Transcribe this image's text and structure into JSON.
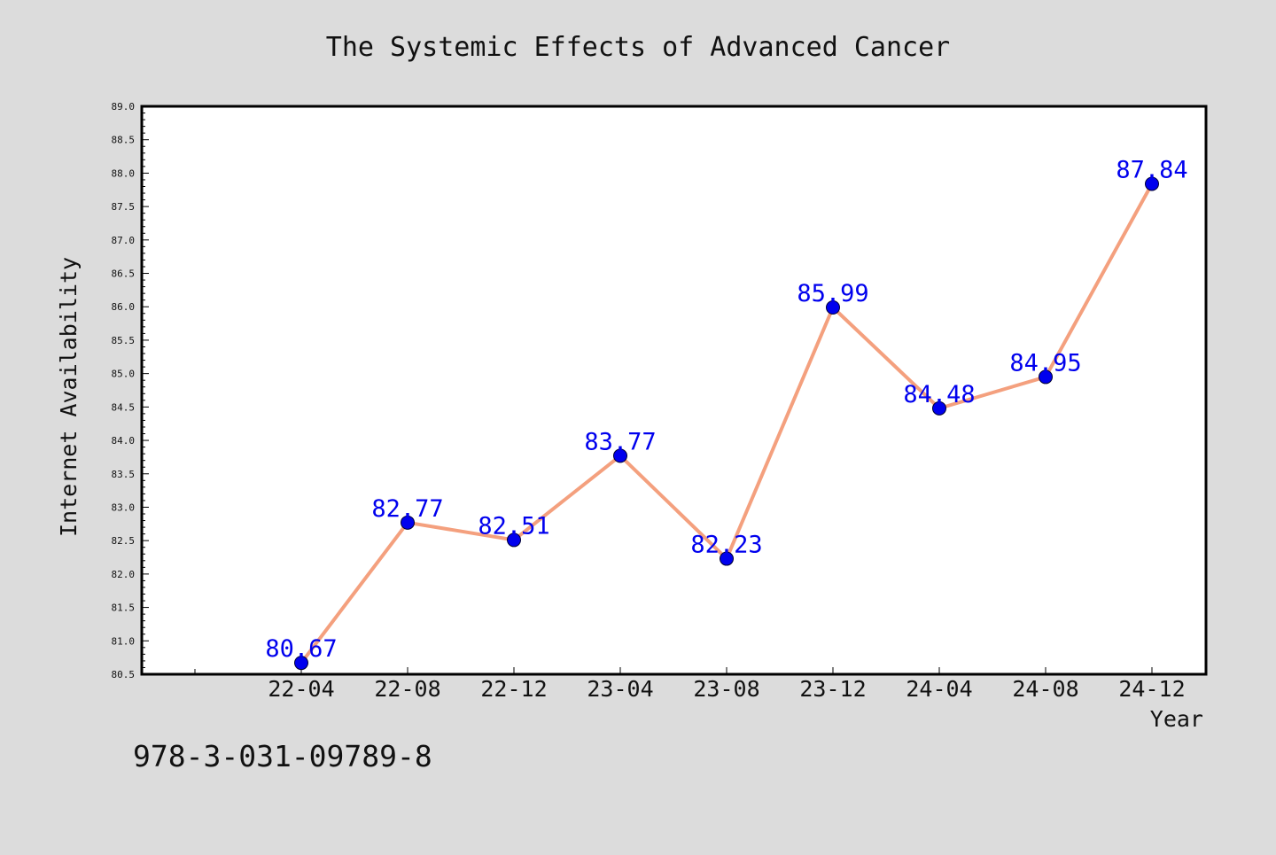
{
  "chart_data": {
    "type": "line",
    "title": "The Systemic Effects of Advanced Cancer",
    "xlabel": "Year",
    "ylabel": "Internet Availability",
    "categories": [
      "22-04",
      "22-08",
      "22-12",
      "23-04",
      "23-08",
      "23-12",
      "24-04",
      "24-08",
      "24-12"
    ],
    "values": [
      80.67,
      82.77,
      82.51,
      83.77,
      82.23,
      85.99,
      84.48,
      84.95,
      87.84
    ],
    "data_labels": [
      "80.67",
      "82.77",
      "82.51",
      "83.77",
      "82.23",
      "85.99",
      "84.48",
      "84.95",
      "87.84"
    ],
    "ylim": [
      80.5,
      89.0
    ],
    "yticks": [
      "80.5",
      "81.0",
      "81.5",
      "82.0",
      "82.5",
      "83.0",
      "83.5",
      "84.0",
      "84.5",
      "85.0",
      "85.5",
      "86.0",
      "86.5",
      "87.0",
      "87.5",
      "88.0",
      "88.5",
      "89.0"
    ],
    "grid": false,
    "line_color": "#f4a07e",
    "marker_color": "#0000ee",
    "label_color": "#0000ee",
    "background_color": "#dcdcdc",
    "plot_background_color": "#ffffff"
  },
  "annotation": {
    "isbn": "978-3-031-09789-8"
  }
}
